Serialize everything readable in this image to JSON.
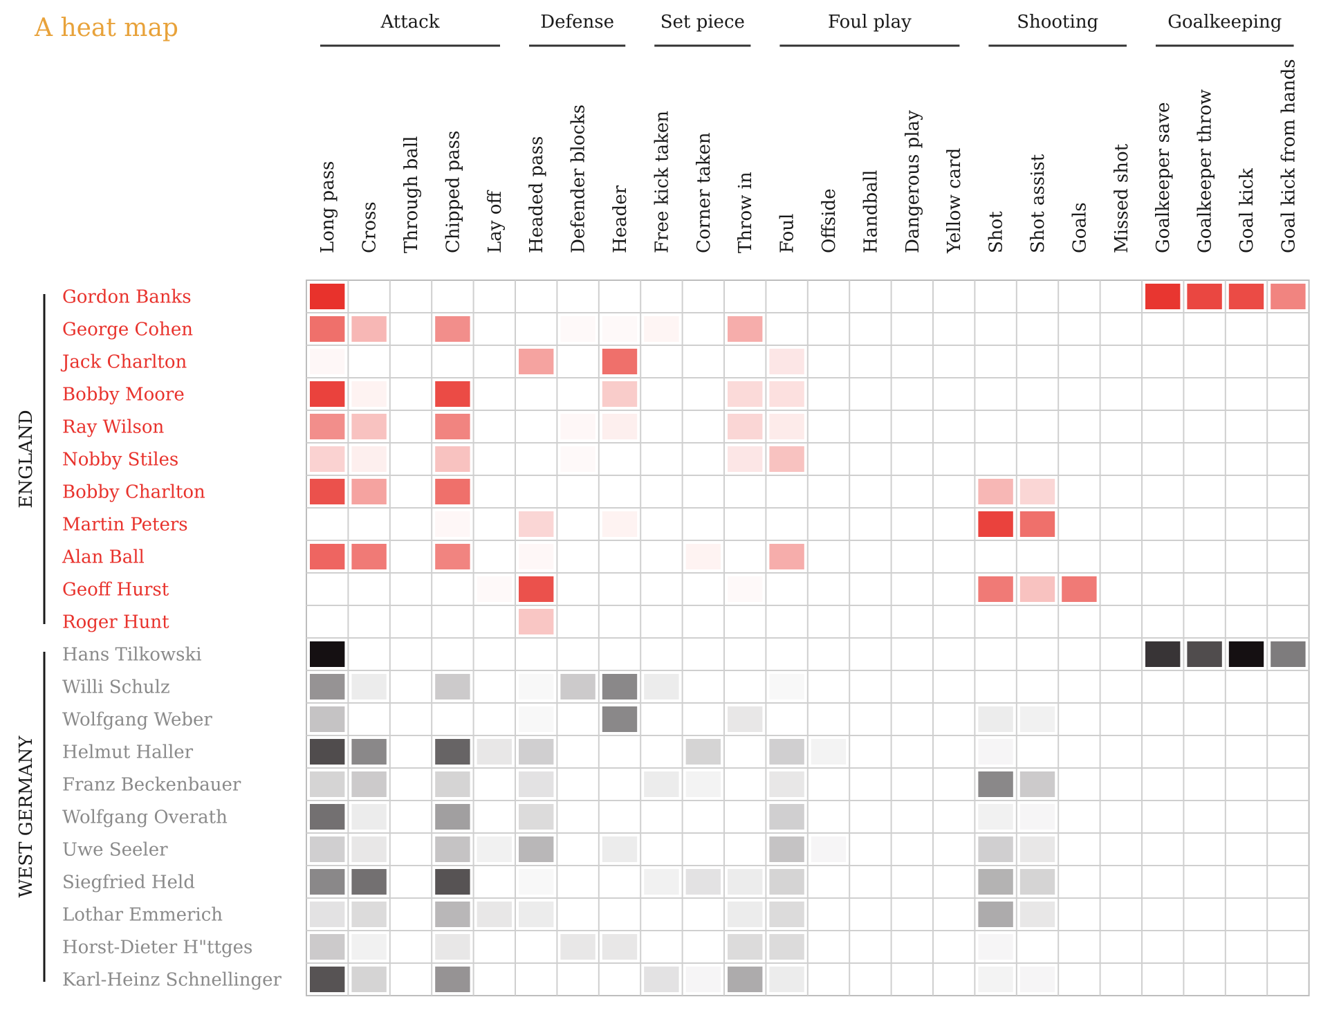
{
  "chart_data": {
    "type": "heatmap",
    "title": "A heat map",
    "value_scale": "intensity 0-1 (estimated from cell shading)",
    "column_groups": [
      {
        "label": "Attack",
        "columns": [
          "Long pass",
          "Cross",
          "Through ball",
          "Chipped pass",
          "Lay off"
        ]
      },
      {
        "label": "Defense",
        "columns": [
          "Headed pass",
          "Defender blocks",
          "Header"
        ]
      },
      {
        "label": "Set piece",
        "columns": [
          "Free kick taken",
          "Corner taken",
          "Throw in"
        ]
      },
      {
        "label": "Foul play",
        "columns": [
          "Foul",
          "Offside",
          "Handball",
          "Dangerous play",
          "Yellow card"
        ]
      },
      {
        "label": "Shooting",
        "columns": [
          "Shot",
          "Shot assist",
          "Goals",
          "Missed shot"
        ]
      },
      {
        "label": "Goalkeeping",
        "columns": [
          "Goalkeeper save",
          "Goalkeeper throw",
          "Goal kick",
          "Goal kick from hands"
        ]
      }
    ],
    "columns": [
      "Long pass",
      "Cross",
      "Through ball",
      "Chipped pass",
      "Lay off",
      "Headed pass",
      "Defender blocks",
      "Header",
      "Free kick taken",
      "Corner taken",
      "Throw in",
      "Foul",
      "Offside",
      "Handball",
      "Dangerous play",
      "Yellow card",
      "Shot",
      "Shot assist",
      "Goals",
      "Missed shot",
      "Goalkeeper save",
      "Goalkeeper throw",
      "Goal kick",
      "Goal kick from hands"
    ],
    "teams": [
      {
        "name": "ENGLAND",
        "color": "#e8322c",
        "rows": [
          {
            "player": "Gordon Banks",
            "values": [
              1.0,
              0,
              0,
              0,
              0,
              0,
              0,
              0,
              0,
              0,
              0,
              0,
              0,
              0,
              0,
              0,
              0,
              0,
              0,
              0,
              0.98,
              0.9,
              0.88,
              0.6
            ]
          },
          {
            "player": "George Cohen",
            "values": [
              0.7,
              0.35,
              0,
              0.55,
              0,
              0,
              0.03,
              0.03,
              0.05,
              0,
              0.4,
              0,
              0,
              0,
              0,
              0,
              0,
              0,
              0,
              0,
              0,
              0,
              0,
              0
            ]
          },
          {
            "player": "Jack Charlton",
            "values": [
              0.04,
              0,
              0,
              0,
              0,
              0.45,
              0,
              0.7,
              0,
              0,
              0,
              0.12,
              0,
              0,
              0,
              0,
              0,
              0,
              0,
              0,
              0,
              0,
              0,
              0
            ]
          },
          {
            "player": "Bobby Moore",
            "values": [
              0.92,
              0.06,
              0,
              0.88,
              0,
              0,
              0,
              0.25,
              0,
              0,
              0.18,
              0.15,
              0,
              0,
              0,
              0,
              0,
              0,
              0,
              0,
              0,
              0,
              0,
              0
            ]
          },
          {
            "player": "Ray Wilson",
            "values": [
              0.55,
              0.3,
              0,
              0.6,
              0,
              0,
              0.04,
              0.08,
              0,
              0,
              0.2,
              0.1,
              0,
              0,
              0,
              0,
              0,
              0,
              0,
              0,
              0,
              0,
              0,
              0
            ]
          },
          {
            "player": "Nobby Stiles",
            "values": [
              0.22,
              0.08,
              0,
              0.3,
              0,
              0,
              0.03,
              0,
              0,
              0,
              0.12,
              0.3,
              0,
              0,
              0,
              0,
              0,
              0,
              0,
              0,
              0,
              0,
              0,
              0
            ]
          },
          {
            "player": "Bobby Charlton",
            "values": [
              0.85,
              0.45,
              0,
              0.7,
              0,
              0,
              0,
              0,
              0,
              0,
              0,
              0,
              0,
              0,
              0,
              0,
              0.35,
              0.2,
              0,
              0,
              0,
              0,
              0,
              0
            ]
          },
          {
            "player": "Martin Peters",
            "values": [
              0,
              0,
              0,
              0.04,
              0,
              0.2,
              0,
              0.06,
              0,
              0,
              0,
              0,
              0,
              0,
              0,
              0,
              0.92,
              0.7,
              0,
              0,
              0,
              0,
              0,
              0
            ]
          },
          {
            "player": "Alan Ball",
            "values": [
              0.75,
              0.65,
              0,
              0.6,
              0,
              0.04,
              0,
              0,
              0,
              0.06,
              0,
              0.4,
              0,
              0,
              0,
              0,
              0,
              0,
              0,
              0,
              0,
              0,
              0,
              0
            ]
          },
          {
            "player": "Geoff Hurst",
            "values": [
              0,
              0,
              0,
              0,
              0.03,
              0.85,
              0,
              0,
              0,
              0,
              0.03,
              0,
              0,
              0,
              0,
              0,
              0.65,
              0.3,
              0.65,
              0,
              0,
              0,
              0,
              0
            ]
          },
          {
            "player": "Roger Hunt",
            "values": [
              0,
              0,
              0,
              0,
              0,
              0.28,
              0,
              0,
              0,
              0,
              0,
              0,
              0,
              0,
              0,
              0,
              0,
              0,
              0,
              0,
              0,
              0,
              0,
              0
            ]
          }
        ]
      },
      {
        "name": "WEST GERMANY",
        "color": "#151012",
        "rows": [
          {
            "player": "Hans Tilkowski",
            "values": [
              1.0,
              0,
              0,
              0,
              0,
              0,
              0,
              0,
              0,
              0,
              0,
              0,
              0,
              0,
              0,
              0,
              0,
              0,
              0,
              0,
              0.85,
              0.75,
              1.0,
              0.55
            ]
          },
          {
            "player": "Willi Schulz",
            "values": [
              0.45,
              0.08,
              0,
              0.22,
              0,
              0.03,
              0.22,
              0.5,
              0.08,
              0,
              0,
              0.03,
              0,
              0,
              0,
              0,
              0,
              0,
              0,
              0,
              0,
              0,
              0,
              0
            ]
          },
          {
            "player": "Wolfgang Weber",
            "values": [
              0.25,
              0,
              0,
              0,
              0,
              0.03,
              0,
              0.5,
              0,
              0,
              0.1,
              0,
              0,
              0,
              0,
              0,
              0.08,
              0.06,
              0,
              0,
              0,
              0,
              0,
              0
            ]
          },
          {
            "player": "Helmut Haller",
            "values": [
              0.75,
              0.5,
              0,
              0.65,
              0.1,
              0.2,
              0,
              0,
              0,
              0.18,
              0,
              0.2,
              0.05,
              0,
              0,
              0,
              0.04,
              0,
              0,
              0,
              0,
              0,
              0,
              0
            ]
          },
          {
            "player": "Franz Beckenbauer",
            "values": [
              0.18,
              0.22,
              0,
              0.18,
              0,
              0.12,
              0,
              0,
              0.08,
              0.05,
              0,
              0.1,
              0,
              0,
              0,
              0,
              0.5,
              0.22,
              0,
              0,
              0,
              0,
              0,
              0
            ]
          },
          {
            "player": "Wolfgang Overath",
            "values": [
              0.6,
              0.08,
              0,
              0.4,
              0,
              0.15,
              0,
              0,
              0,
              0,
              0,
              0.2,
              0,
              0,
              0,
              0,
              0.06,
              0.04,
              0,
              0,
              0,
              0,
              0,
              0
            ]
          },
          {
            "player": "Uwe Seeler",
            "values": [
              0.2,
              0.1,
              0,
              0.25,
              0.06,
              0.3,
              0,
              0.08,
              0,
              0,
              0,
              0.25,
              0.04,
              0,
              0,
              0,
              0.2,
              0.1,
              0,
              0,
              0,
              0,
              0,
              0
            ]
          },
          {
            "player": "Siegfried Held",
            "values": [
              0.5,
              0.6,
              0,
              0.72,
              0,
              0.03,
              0,
              0,
              0.06,
              0.12,
              0.08,
              0.18,
              0,
              0,
              0,
              0,
              0.32,
              0.18,
              0,
              0,
              0,
              0,
              0,
              0
            ]
          },
          {
            "player": "Lothar Emmerich",
            "values": [
              0.12,
              0.15,
              0,
              0.3,
              0.1,
              0.08,
              0,
              0,
              0,
              0,
              0.08,
              0.15,
              0,
              0,
              0,
              0,
              0.35,
              0.1,
              0,
              0,
              0,
              0,
              0,
              0
            ]
          },
          {
            "player": "Horst-Dieter H\"ttges",
            "values": [
              0.22,
              0.06,
              0,
              0.1,
              0,
              0,
              0.1,
              0.1,
              0,
              0,
              0.15,
              0.15,
              0,
              0,
              0,
              0,
              0.04,
              0,
              0,
              0,
              0,
              0,
              0,
              0
            ]
          },
          {
            "player": "Karl-Heinz Schnellinger",
            "values": [
              0.72,
              0.18,
              0,
              0.45,
              0,
              0,
              0,
              0,
              0.12,
              0.04,
              0.35,
              0.08,
              0,
              0,
              0,
              0,
              0.05,
              0.04,
              0,
              0,
              0,
              0,
              0,
              0
            ]
          }
        ]
      }
    ]
  },
  "colors": {
    "title": "#e8a23a",
    "grid": "#c8c8c8",
    "england_label": "#e8322c",
    "germany_label": "#8a8a8a",
    "text": "#1a1a1a"
  }
}
